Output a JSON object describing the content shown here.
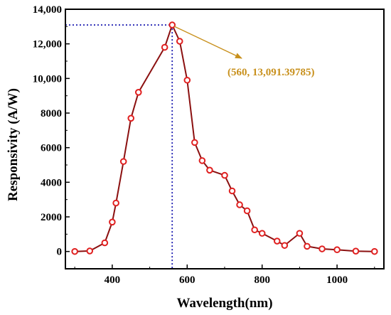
{
  "chart_data": {
    "type": "line",
    "title": "",
    "xlabel": "Wavelength(nm)",
    "ylabel": "Responsivity (A/W)",
    "xlim": [
      275,
      1125
    ],
    "ylim": [
      -1000,
      14000
    ],
    "xticks": [
      400,
      600,
      800,
      1000
    ],
    "xtick_labels": [
      "400",
      "600",
      "800",
      "1000"
    ],
    "yticks": [
      0,
      2000,
      4000,
      6000,
      8000,
      10000,
      12000,
      14000
    ],
    "ytick_labels": [
      "0",
      "2000",
      "4000",
      "6000",
      "8000",
      "10,000",
      "12,000",
      "14,000"
    ],
    "grid": false,
    "series": [
      {
        "color": "#8b1010",
        "marker_color": "#e02020",
        "x": [
          300,
          340,
          380,
          400,
          410,
          430,
          450,
          470,
          540,
          560,
          580,
          600,
          620,
          640,
          660,
          700,
          720,
          740,
          760,
          780,
          800,
          840,
          860,
          900,
          920,
          960,
          1000,
          1050,
          1100
        ],
        "y": [
          0,
          30,
          500,
          1700,
          2800,
          5200,
          7700,
          9200,
          11800,
          13091.39785,
          12150,
          9900,
          6300,
          5250,
          4700,
          4400,
          3500,
          2700,
          2350,
          1250,
          1050,
          600,
          350,
          1050,
          300,
          150,
          100,
          20,
          0
        ]
      }
    ],
    "annotation": {
      "text": "(560, 13,091.39785)",
      "x": 560,
      "y": 13091.39785,
      "color": "#c8901c",
      "guide_color": "#1a1ab0"
    }
  }
}
